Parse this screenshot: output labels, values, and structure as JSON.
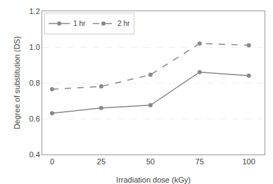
{
  "chart_data": {
    "type": "line",
    "xlabel": "Irradiation dose (kGy)",
    "ylabel": "Degree of substitution (DS)",
    "x": [
      0,
      25,
      50,
      75,
      100
    ],
    "series": [
      {
        "name": "1 hr",
        "color": "#888888",
        "values": [
          0.63,
          0.66,
          0.675,
          0.86,
          0.84
        ],
        "line_style": "solid",
        "marker": "circle"
      },
      {
        "name": "2 hr",
        "color": "#888888",
        "values": [
          0.765,
          0.78,
          0.845,
          1.02,
          1.01
        ],
        "line_style": "dashed",
        "marker": "circle"
      }
    ],
    "xlim": [
      -5,
      108
    ],
    "ylim": [
      0.4,
      1.2
    ],
    "xticks": [
      0,
      25,
      50,
      75,
      100
    ],
    "yticks": [
      0.4,
      0.6,
      0.8,
      {
        "value": 1.0,
        "label": "1.0"
      },
      1.2
    ],
    "grid": "y",
    "legend": "upper left"
  }
}
